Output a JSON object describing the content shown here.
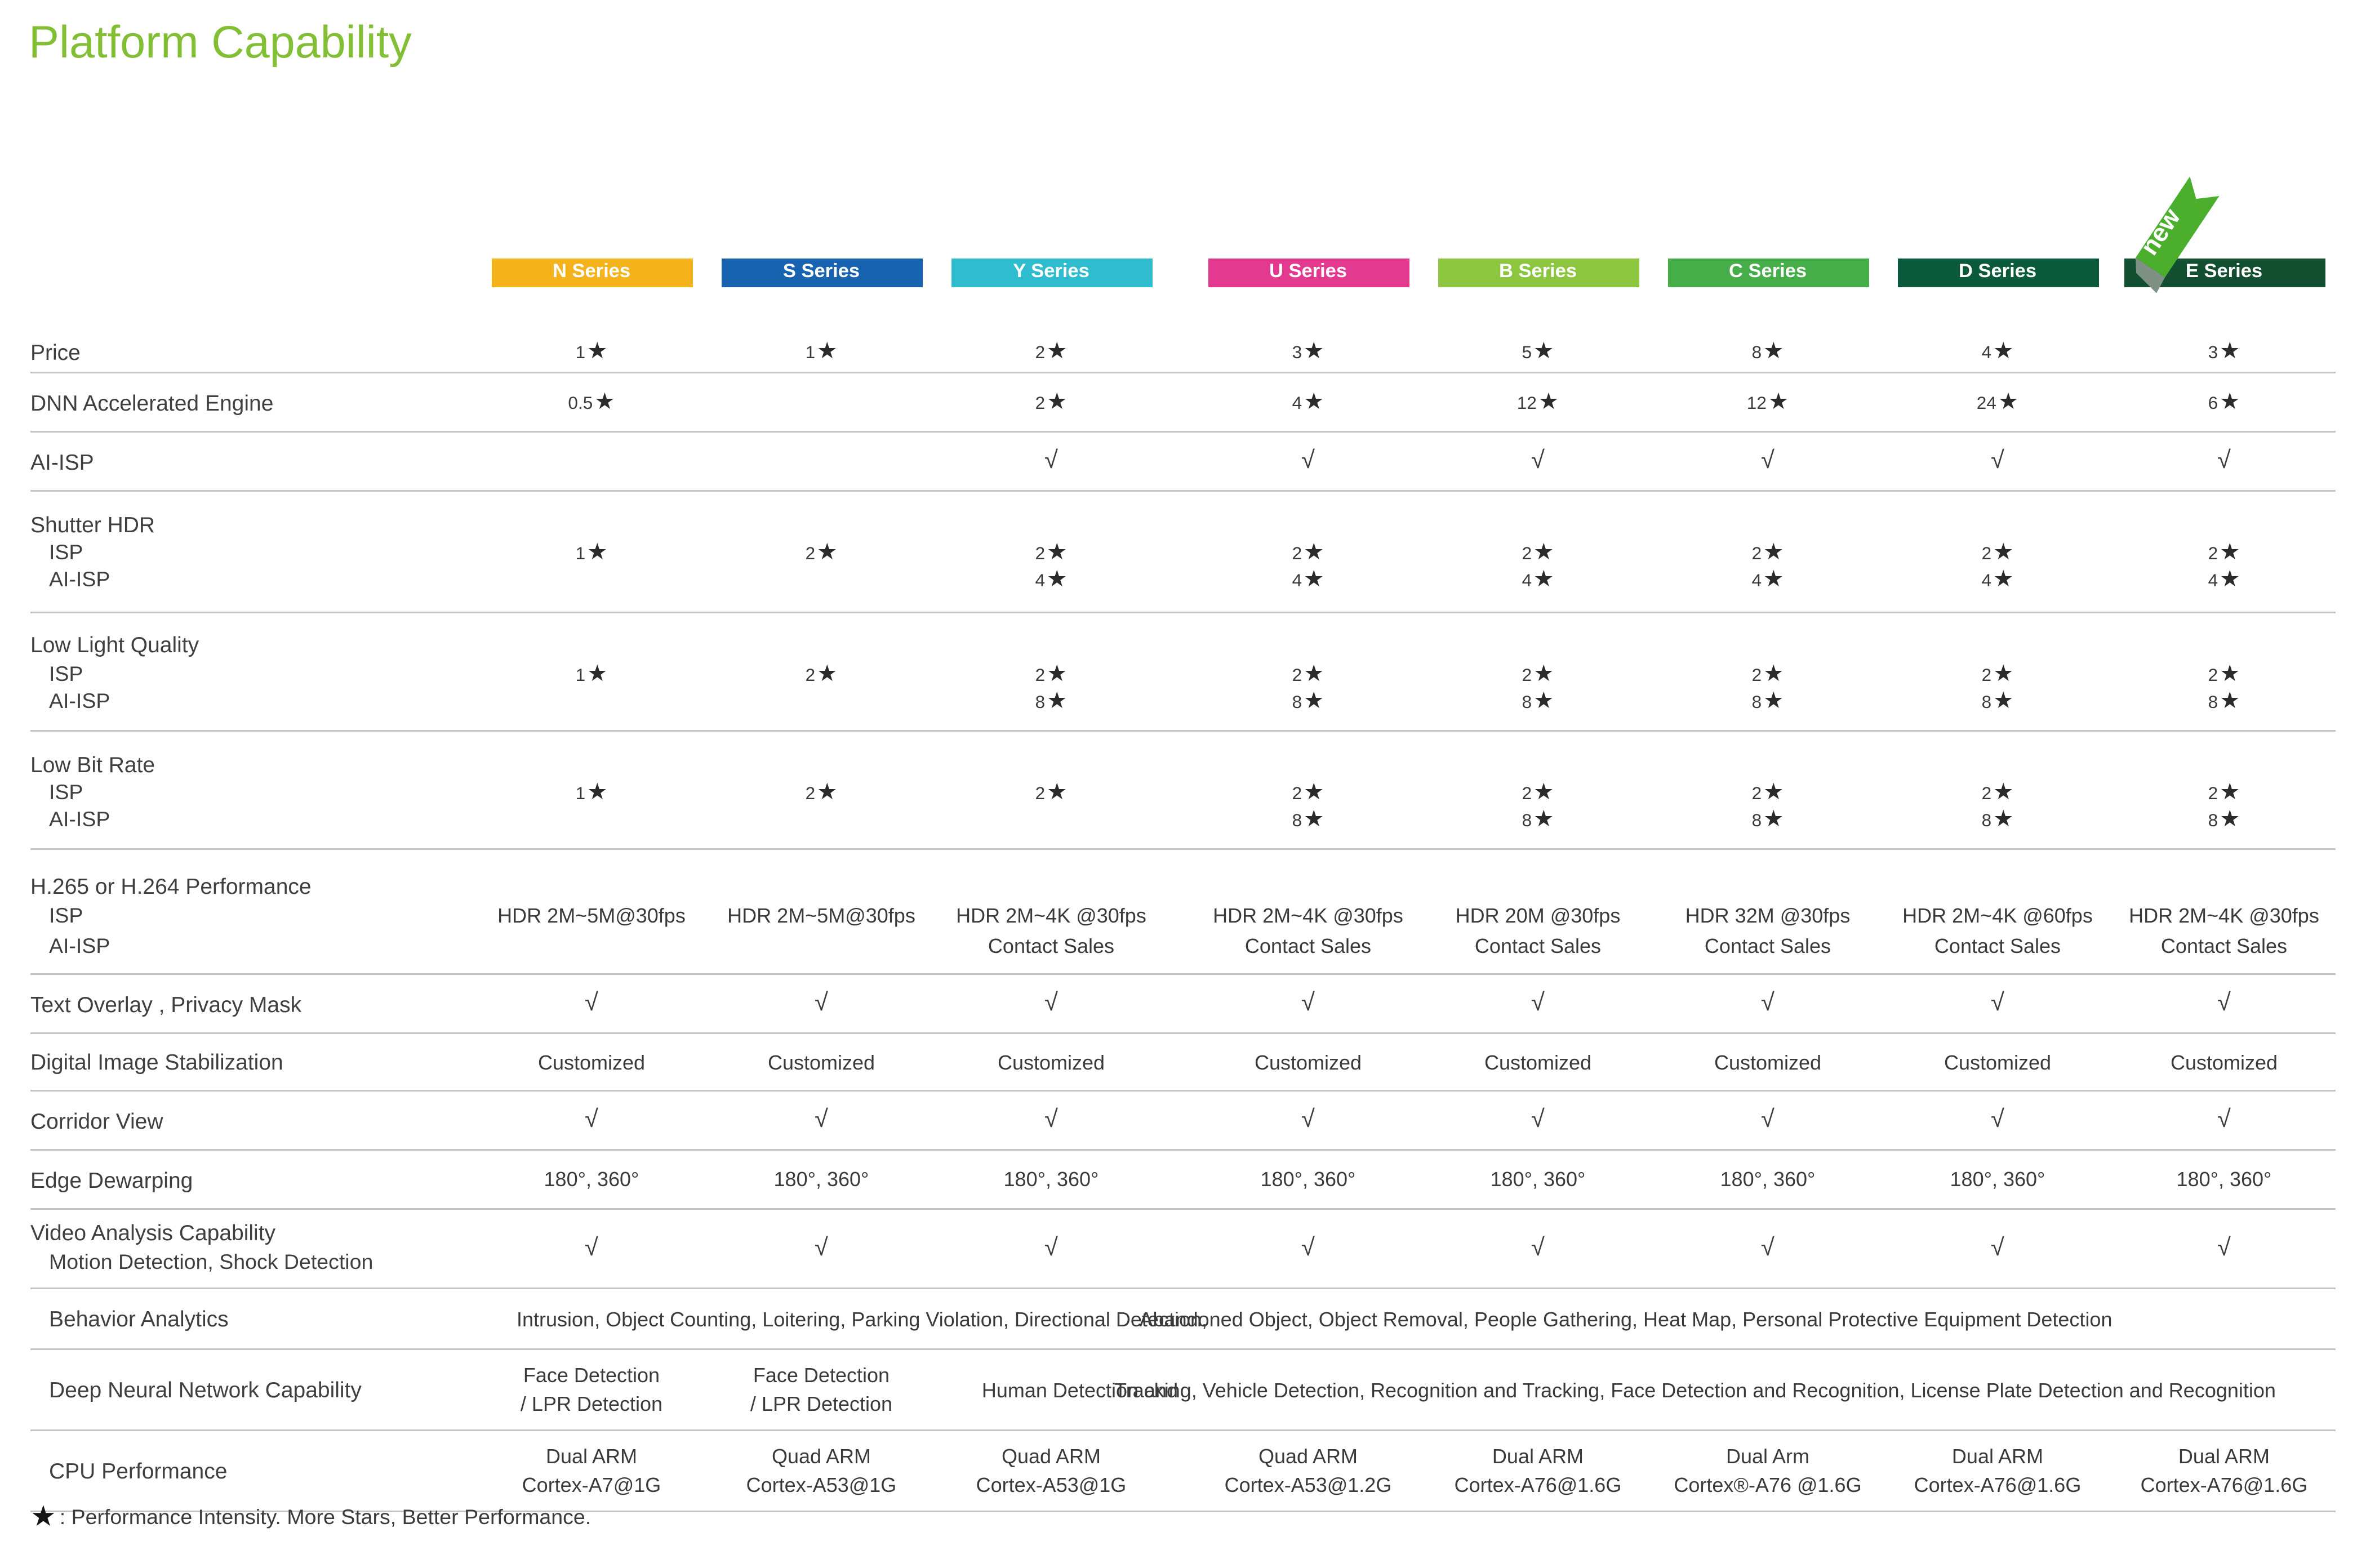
{
  "title": "Platform Capability",
  "footnote": {
    "star": "★",
    "text": ": Performance Intensity. More Stars, Better Performance."
  },
  "glyphs": {
    "star": "★",
    "check": "√"
  },
  "ribbon": {
    "label": "new",
    "color": "#4BAE2D",
    "shadow_color": "#7E9184"
  },
  "columns": [
    {
      "label": "N Series",
      "color": "#F5B31B"
    },
    {
      "label": "S Series",
      "color": "#1763AF"
    },
    {
      "label": "Y Series",
      "color": "#2FBCCE"
    },
    {
      "label": "U Series",
      "color": "#E33A8F"
    },
    {
      "label": "B Series",
      "color": "#8CC63F"
    },
    {
      "label": "C Series",
      "color": "#45AE49"
    },
    {
      "label": "D Series",
      "color": "#0C5A3C"
    },
    {
      "label": "E Series",
      "color": "#124E30"
    }
  ],
  "rows": [
    {
      "label": "Price",
      "cells": [
        {
          "n": "1"
        },
        {
          "n": "1"
        },
        {
          "n": "2"
        },
        {
          "n": "3"
        },
        {
          "n": "5"
        },
        {
          "n": "8"
        },
        {
          "n": "4"
        },
        {
          "n": "3"
        }
      ]
    },
    {
      "label": "DNN Accelerated Engine",
      "cells": [
        {
          "n": "0.5"
        },
        null,
        {
          "n": "2"
        },
        {
          "n": "4"
        },
        {
          "n": "12"
        },
        {
          "n": "12"
        },
        {
          "n": "24"
        },
        {
          "n": "6"
        }
      ]
    },
    {
      "label": "AI-ISP",
      "cells": [
        null,
        null,
        {
          "c": true
        },
        {
          "c": true
        },
        {
          "c": true
        },
        {
          "c": true
        },
        {
          "c": true
        },
        {
          "c": true
        }
      ]
    },
    {
      "label": "Shutter HDR",
      "subrows": [
        {
          "label": "ISP",
          "cells": [
            {
              "n": "1"
            },
            {
              "n": "2"
            },
            {
              "n": "2"
            },
            {
              "n": "2"
            },
            {
              "n": "2"
            },
            {
              "n": "2"
            },
            {
              "n": "2"
            },
            {
              "n": "2"
            }
          ]
        },
        {
          "label": "AI-ISP",
          "cells": [
            null,
            null,
            {
              "n": "4"
            },
            {
              "n": "4"
            },
            {
              "n": "4"
            },
            {
              "n": "4"
            },
            {
              "n": "4"
            },
            {
              "n": "4"
            }
          ]
        }
      ]
    },
    {
      "label": "Low Light Quality",
      "subrows": [
        {
          "label": "ISP",
          "cells": [
            {
              "n": "1"
            },
            {
              "n": "2"
            },
            {
              "n": "2"
            },
            {
              "n": "2"
            },
            {
              "n": "2"
            },
            {
              "n": "2"
            },
            {
              "n": "2"
            },
            {
              "n": "2"
            }
          ]
        },
        {
          "label": "AI-ISP",
          "cells": [
            null,
            null,
            {
              "n": "8"
            },
            {
              "n": "8"
            },
            {
              "n": "8"
            },
            {
              "n": "8"
            },
            {
              "n": "8"
            },
            {
              "n": "8"
            }
          ]
        }
      ]
    },
    {
      "label": "Low Bit Rate",
      "subrows": [
        {
          "label": "ISP",
          "cells": [
            {
              "n": "1"
            },
            {
              "n": "2"
            },
            {
              "n": "2"
            },
            {
              "n": "2"
            },
            {
              "n": "2"
            },
            {
              "n": "2"
            },
            {
              "n": "2"
            },
            {
              "n": "2"
            }
          ]
        },
        {
          "label": "AI-ISP",
          "cells": [
            null,
            null,
            null,
            {
              "n": "8"
            },
            {
              "n": "8"
            },
            {
              "n": "8"
            },
            {
              "n": "8"
            },
            {
              "n": "8"
            }
          ]
        }
      ]
    },
    {
      "label": "H.265 or H.264 Performance",
      "subrows": [
        {
          "label": "ISP",
          "cells": [
            {
              "t": "HDR 2M~5M@30fps"
            },
            {
              "t": "HDR 2M~5M@30fps"
            },
            {
              "t": "HDR 2M~4K @30fps"
            },
            {
              "t": "HDR 2M~4K @30fps"
            },
            {
              "t": "HDR 20M @30fps"
            },
            {
              "t": "HDR 32M @30fps"
            },
            {
              "t": "HDR 2M~4K @60fps"
            },
            {
              "t": "HDR 2M~4K @30fps"
            }
          ]
        },
        {
          "label": "AI-ISP",
          "cells": [
            null,
            null,
            {
              "t": "Contact Sales"
            },
            {
              "t": "Contact Sales"
            },
            {
              "t": "Contact Sales"
            },
            {
              "t": "Contact Sales"
            },
            {
              "t": "Contact Sales"
            },
            {
              "t": "Contact Sales"
            }
          ]
        }
      ]
    },
    {
      "label": "Text Overlay , Privacy Mask",
      "cells": [
        {
          "c": true
        },
        {
          "c": true
        },
        {
          "c": true
        },
        {
          "c": true
        },
        {
          "c": true
        },
        {
          "c": true
        },
        {
          "c": true
        },
        {
          "c": true
        }
      ]
    },
    {
      "label": "Digital Image Stabilization",
      "cells": [
        {
          "t": "Customized"
        },
        {
          "t": "Customized"
        },
        {
          "t": "Customized"
        },
        {
          "t": "Customized"
        },
        {
          "t": "Customized"
        },
        {
          "t": "Customized"
        },
        {
          "t": "Customized"
        },
        {
          "t": "Customized"
        }
      ]
    },
    {
      "label": "Corridor View",
      "cells": [
        {
          "c": true
        },
        {
          "c": true
        },
        {
          "c": true
        },
        {
          "c": true
        },
        {
          "c": true
        },
        {
          "c": true
        },
        {
          "c": true
        },
        {
          "c": true
        }
      ]
    },
    {
      "label": "Edge Dewarping",
      "cells": [
        {
          "t": "180°, 360°"
        },
        {
          "t": "180°, 360°"
        },
        {
          "t": "180°, 360°"
        },
        {
          "t": "180°, 360°"
        },
        {
          "t": "180°, 360°"
        },
        {
          "t": "180°, 360°"
        },
        {
          "t": "180°, 360°"
        },
        {
          "t": "180°, 360°"
        }
      ]
    },
    {
      "label": "Video Analysis Capability",
      "sublabel": "Motion Detection, Shock Detection",
      "cells": [
        {
          "c": true
        },
        {
          "c": true
        },
        {
          "c": true
        },
        {
          "c": true
        },
        {
          "c": true
        },
        {
          "c": true
        },
        {
          "c": true
        },
        {
          "c": true
        }
      ]
    },
    {
      "label": "Behavior Analytics",
      "spans": [
        {
          "text": "Intrusion, Object Counting, Loitering, Parking Violation, Directional Detection,",
          "center": 510
        },
        {
          "text": "Abandoned Object, Object Removal, People Gathering, Heat Map, Personal Protective Equipment Detection",
          "center": 962
        }
      ]
    },
    {
      "label": "Deep Neural Network Capability",
      "cells": [
        {
          "l": [
            "Face Detection",
            "/ LPR Detection"
          ]
        },
        {
          "l": [
            "Face Detection",
            "/ LPR Detection"
          ]
        },
        null,
        null,
        null,
        null,
        null,
        null
      ],
      "spans": [
        {
          "text": "Human Detection and",
          "center": 639
        },
        {
          "text": "Tracking, Vehicle Detection, Recognition and Tracking, Face Detection and Recognition, License Plate Detection and Recognition",
          "center": 1003
        }
      ]
    },
    {
      "label": "CPU Performance",
      "cells": [
        {
          "l": [
            "Dual ARM",
            "Cortex-A7@1G"
          ]
        },
        {
          "l": [
            "Quad ARM",
            "Cortex-A53@1G"
          ]
        },
        {
          "l": [
            "Quad ARM",
            "Cortex-A53@1G"
          ]
        },
        {
          "l": [
            "Quad ARM",
            "Cortex-A53@1.2G"
          ]
        },
        {
          "l": [
            "Dual ARM",
            "Cortex-A76@1.6G"
          ]
        },
        {
          "l": [
            "Dual Arm",
            "Cortex®-A76 @1.6G"
          ]
        },
        {
          "l": [
            "Dual ARM",
            "Cortex-A76@1.6G"
          ]
        },
        {
          "l": [
            "Dual ARM",
            "Cortex-A76@1.6G"
          ]
        }
      ]
    }
  ]
}
